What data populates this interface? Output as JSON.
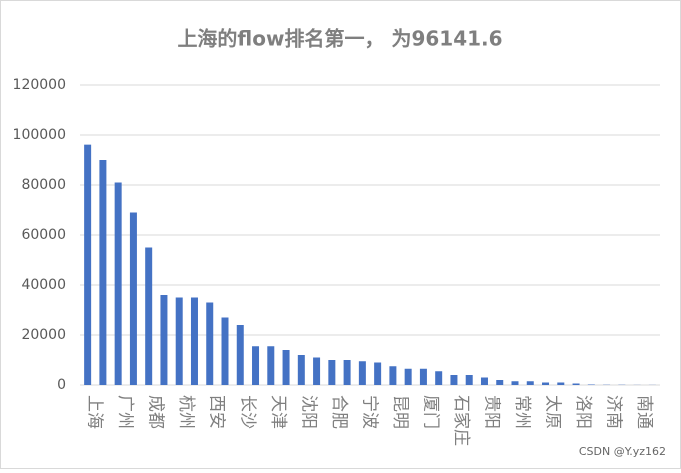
{
  "chart_data": {
    "type": "bar",
    "title": "上海的flow排名第一， 为96141.6",
    "categories": [
      "上海",
      null,
      "广州",
      null,
      "成都",
      null,
      "杭州",
      null,
      "西安",
      null,
      "长沙",
      null,
      "天津",
      null,
      "沈阳",
      null,
      "合肥",
      null,
      "宁波",
      null,
      "昆明",
      null,
      "厦门",
      null,
      "石家庄",
      null,
      "贵阳",
      null,
      "常州",
      null,
      "太原",
      null,
      "洛阳",
      null,
      "济南",
      null,
      "南通",
      null
    ],
    "values": [
      96141.6,
      90000,
      81000,
      69000,
      55000,
      36000,
      35000,
      35000,
      33000,
      27000,
      24000,
      15500,
      15500,
      14000,
      12000,
      11000,
      10000,
      10000,
      9500,
      9000,
      7500,
      6500,
      6500,
      5500,
      4000,
      4000,
      3000,
      2000,
      1500,
      1500,
      1000,
      1000,
      600,
      200,
      100,
      100,
      50,
      50
    ],
    "color": "#4472c4",
    "ylim": [
      0,
      120000
    ],
    "yticks": [
      0,
      20000,
      40000,
      60000,
      80000,
      100000,
      120000
    ],
    "grid": true,
    "watermark": "CSDN @Y.yz162"
  }
}
